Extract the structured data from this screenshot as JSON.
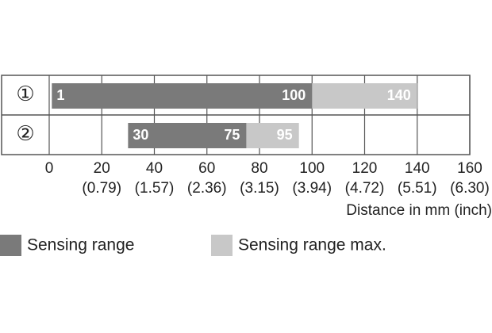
{
  "chart_data": {
    "type": "range-bar",
    "categories": [
      "①",
      "②"
    ],
    "series": [
      {
        "name": "Sensing range",
        "color": "#7a7a7a",
        "starts": [
          1,
          30
        ],
        "ends": [
          100,
          75
        ]
      },
      {
        "name": "Sensing range max.",
        "color": "#c8c8c8",
        "ends": [
          140,
          95
        ]
      }
    ],
    "xlim": [
      0,
      160
    ],
    "xticks": [
      0,
      20,
      40,
      60,
      80,
      100,
      120,
      140,
      160
    ],
    "xtick_inch_labels": [
      null,
      "(0.79)",
      "(1.57)",
      "(2.36)",
      "(3.15)",
      "(3.94)",
      "(4.72)",
      "(5.51)",
      "(6.30)"
    ],
    "xlabel": "Distance in mm (inch)",
    "grid": true
  }
}
